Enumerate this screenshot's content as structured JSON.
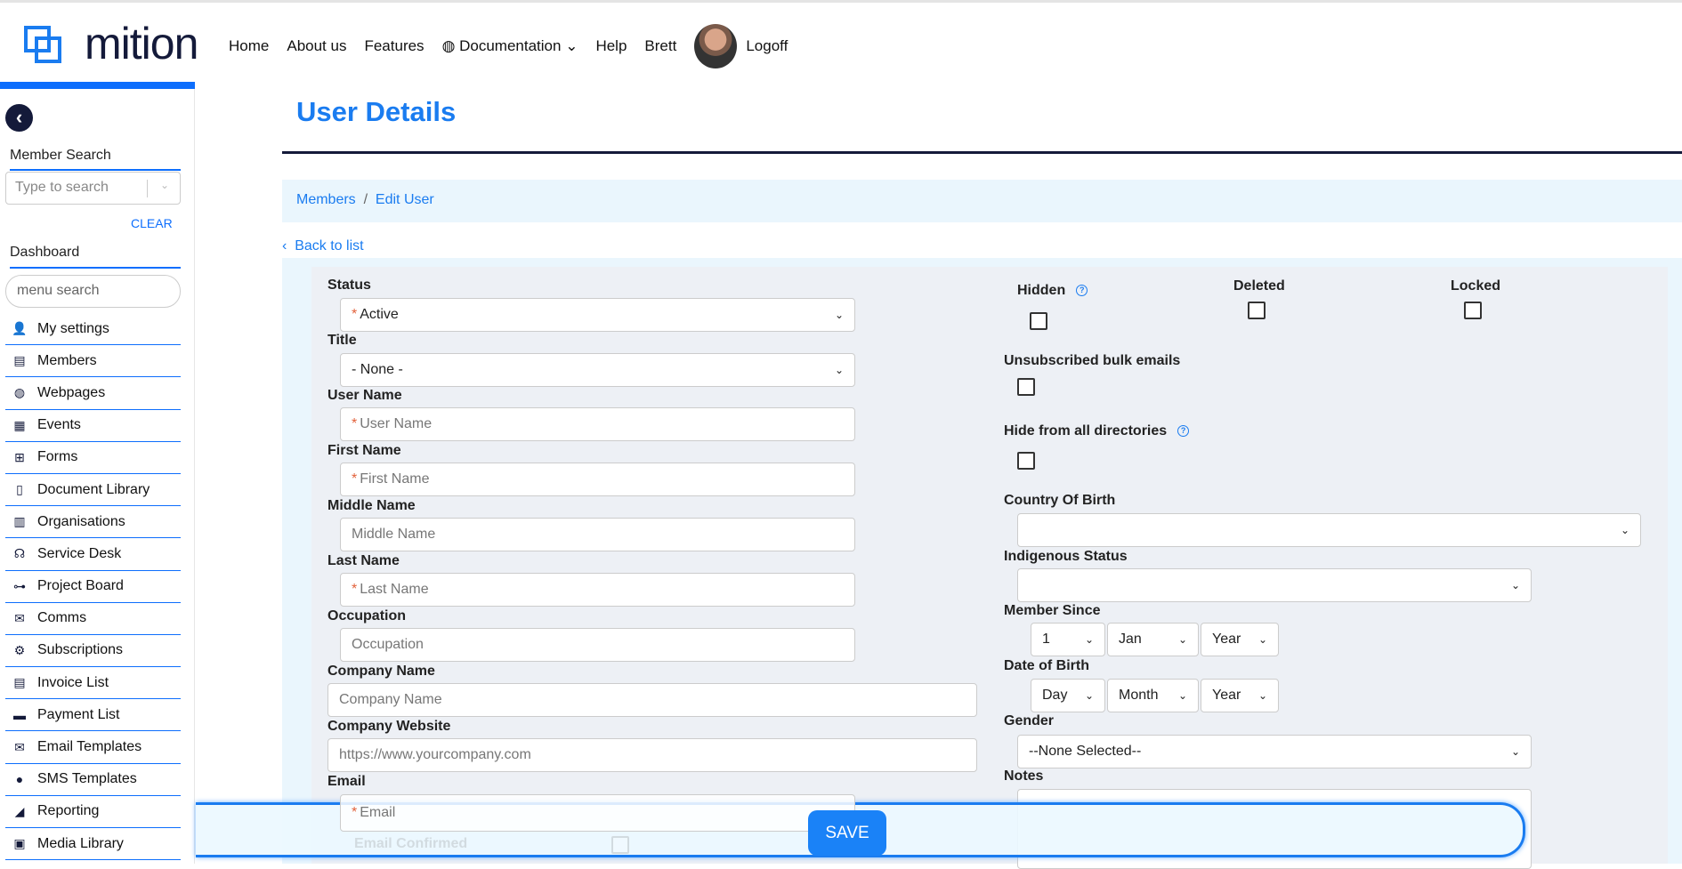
{
  "header": {
    "logo": "mition",
    "nav": [
      "Home",
      "About us",
      "Features",
      "Documentation",
      "Help",
      "Brett",
      "Logoff"
    ]
  },
  "sidebar": {
    "member_search_label": "Member Search",
    "search_placeholder": "Type to search",
    "clear": "CLEAR",
    "dashboard": "Dashboard",
    "menu_search_placeholder": "menu search",
    "items": [
      {
        "label": "My settings",
        "icon": "user-gear-icon",
        "g": "👤"
      },
      {
        "label": "Members",
        "icon": "id-card-icon",
        "g": "▤"
      },
      {
        "label": "Webpages",
        "icon": "globe-icon",
        "g": "◍"
      },
      {
        "label": "Events",
        "icon": "calendar-icon",
        "g": "▦"
      },
      {
        "label": "Forms",
        "icon": "table-icon",
        "g": "⊞"
      },
      {
        "label": "Document Library",
        "icon": "document-icon",
        "g": "▯"
      },
      {
        "label": "Organisations",
        "icon": "building-icon",
        "g": "▥"
      },
      {
        "label": "Service Desk",
        "icon": "headset-icon",
        "g": "☊"
      },
      {
        "label": "Project Board",
        "icon": "sitemap-icon",
        "g": "⊶"
      },
      {
        "label": "Comms",
        "icon": "mail-bulk-icon",
        "g": "✉"
      },
      {
        "label": "Subscriptions",
        "icon": "users-gear-icon",
        "g": "⚙"
      },
      {
        "label": "Invoice List",
        "icon": "invoice-icon",
        "g": "▤"
      },
      {
        "label": "Payment List",
        "icon": "stripe-icon",
        "g": "▬"
      },
      {
        "label": "Email Templates",
        "icon": "envelope-open-icon",
        "g": "✉"
      },
      {
        "label": "SMS Templates",
        "icon": "sms-icon",
        "g": "●"
      },
      {
        "label": "Reporting",
        "icon": "chart-area-icon",
        "g": "◢"
      },
      {
        "label": "Media Library",
        "icon": "images-icon",
        "g": "▣"
      }
    ]
  },
  "page": {
    "title": "User Details",
    "breadcrumb": [
      "Members",
      "Edit User"
    ],
    "back": "Back to list"
  },
  "form": {
    "status": {
      "label": "Status",
      "value": "Active"
    },
    "title": {
      "label": "Title",
      "value": "- None -"
    },
    "user_name": {
      "label": "User Name",
      "placeholder": "User Name"
    },
    "first_name": {
      "label": "First Name",
      "placeholder": "First Name"
    },
    "middle_name": {
      "label": "Middle Name",
      "placeholder": "Middle Name"
    },
    "last_name": {
      "label": "Last Name",
      "placeholder": "Last Name"
    },
    "occupation": {
      "label": "Occupation",
      "placeholder": "Occupation"
    },
    "company_name": {
      "label": "Company Name",
      "placeholder": "Company Name"
    },
    "company_website": {
      "label": "Company Website",
      "placeholder": "https://www.yourcompany.com"
    },
    "email": {
      "label": "Email",
      "placeholder": "Email"
    },
    "email_confirmed": "Email Confirmed",
    "hidden": "Hidden",
    "deleted": "Deleted",
    "locked": "Locked",
    "unsubscribed": "Unsubscribed bulk emails",
    "hide_dirs": "Hide from all directories",
    "country": {
      "label": "Country Of Birth",
      "value": ""
    },
    "indigenous": {
      "label": "Indigenous Status",
      "value": ""
    },
    "member_since": {
      "label": "Member Since",
      "day": "1",
      "month": "Jan",
      "year": "Year"
    },
    "dob": {
      "label": "Date of Birth",
      "day": "Day",
      "month": "Month",
      "year": "Year"
    },
    "gender": {
      "label": "Gender",
      "value": "--None Selected--"
    },
    "notes": {
      "label": "Notes"
    },
    "save": "SAVE"
  },
  "colors": {
    "accent": "#1a7cf0",
    "dark": "#141a3a"
  }
}
